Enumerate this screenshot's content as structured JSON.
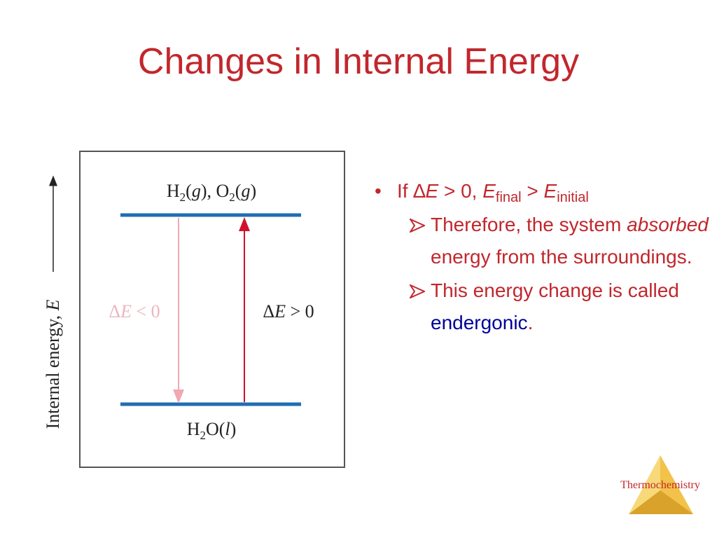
{
  "title": "Changes in Internal Energy",
  "diagram": {
    "axis_label": [
      "Internal energy, ",
      "E"
    ],
    "top_level": [
      "H",
      "2",
      "(",
      "g",
      "), O",
      "2",
      "(",
      "g",
      ")"
    ],
    "bottom_level": [
      "H",
      "2",
      "O(",
      "l",
      ")"
    ],
    "left_arrow_label": [
      "Δ",
      "E",
      " < 0"
    ],
    "right_arrow_label": [
      "Δ",
      "E",
      " > 0"
    ]
  },
  "bullets": {
    "main": [
      "If ",
      "∆",
      "E",
      " > 0, ",
      "E",
      "final",
      " > ",
      "E",
      "initial"
    ],
    "sub": [
      [
        "Therefore, the system ",
        "absorbed",
        " energy from the surroundings."
      ],
      [
        "This energy change is called ",
        "endergonic",
        "."
      ]
    ]
  },
  "footer": "Thermochemistry"
}
